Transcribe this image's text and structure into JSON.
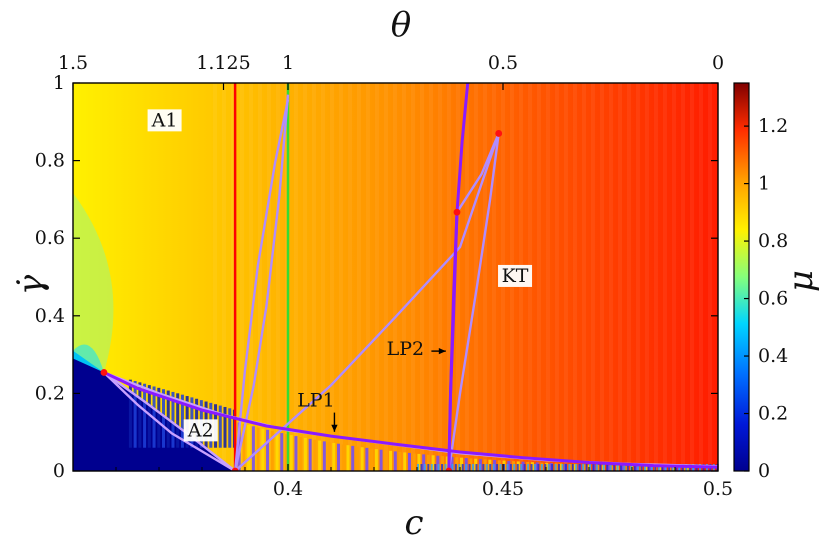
{
  "chart_data": {
    "type": "heatmap",
    "x_axis": {
      "label": "c",
      "range": [
        0.35,
        0.5
      ],
      "ticks": [
        0.4,
        0.45,
        0.5
      ],
      "tick_labels": [
        "0.4",
        "0.45",
        "0.5"
      ]
    },
    "x2_axis": {
      "label": "θ",
      "tick_positions_c": [
        0.35,
        0.385,
        0.4,
        0.45,
        0.5
      ],
      "tick_labels": [
        "1.5",
        "1.125",
        "1",
        "0.5",
        "0"
      ]
    },
    "y_axis": {
      "label": "γ̇",
      "range": [
        0,
        1
      ],
      "ticks": [
        0,
        0.2,
        0.4,
        0.6,
        0.8,
        1
      ],
      "tick_labels": [
        "0",
        "0.2",
        "0.4",
        "0.6",
        "0.8",
        "1"
      ]
    },
    "colorbar": {
      "label": "μ",
      "range": [
        0,
        1.35
      ],
      "ticks": [
        0,
        0.2,
        0.4,
        0.6,
        0.8,
        1,
        1.2
      ],
      "tick_labels": [
        "0",
        "0.2",
        "0.4",
        "0.6",
        "0.8",
        "1",
        "1.2"
      ],
      "colormap": [
        "#00008f",
        "#0050ff",
        "#00ffff",
        "#80ff80",
        "#ffff00",
        "#ff8000",
        "#ff0000",
        "#800000"
      ]
    },
    "region_labels": [
      {
        "text": "A1",
        "c": 0.3713,
        "gamma": 0.896
      },
      {
        "text": "A2",
        "c": 0.3797,
        "gamma": 0.097
      },
      {
        "text": "KT",
        "c": 0.4528,
        "gamma": 0.495
      }
    ],
    "annotations": [
      {
        "text": "LP1",
        "c": 0.4065,
        "gamma": 0.166,
        "arrow_to": [
          0.4108,
          0.101
        ]
      },
      {
        "text": "LP2",
        "c": 0.4273,
        "gamma": 0.299,
        "arrow_to": [
          0.4367,
          0.309
        ]
      }
    ],
    "vertical_lines": [
      {
        "name": "red",
        "c": 0.3877,
        "color": "#ff0000"
      },
      {
        "name": "green",
        "c": 0.4,
        "color": "#33dd33"
      }
    ],
    "purple_curves": [
      {
        "name": "spinodal-lower",
        "color": "#8a1aff",
        "points": [
          [
            0.3572,
            0.254
          ],
          [
            0.365,
            0.213
          ],
          [
            0.38,
            0.157
          ],
          [
            0.395,
            0.116
          ],
          [
            0.41,
            0.09
          ],
          [
            0.425,
            0.069
          ],
          [
            0.44,
            0.049
          ],
          [
            0.455,
            0.034
          ],
          [
            0.47,
            0.022
          ],
          [
            0.485,
            0.014
          ],
          [
            0.5,
            0.01
          ]
        ]
      },
      {
        "name": "spinodal-vertical",
        "color": "#8a1aff",
        "points": [
          [
            0.4374,
            0.0
          ],
          [
            0.4378,
            0.2
          ],
          [
            0.4385,
            0.4
          ],
          [
            0.4393,
            0.667
          ],
          [
            0.4405,
            0.85
          ],
          [
            0.4418,
            1.0
          ]
        ]
      },
      {
        "name": "spinodal-return",
        "color": "#8a1aff",
        "points": [
          [
            0.4374,
            0.0
          ],
          [
            0.4378,
            0.2
          ],
          [
            0.4385,
            0.45
          ],
          [
            0.4393,
            0.667
          ]
        ]
      }
    ],
    "light_curves": [
      {
        "name": "envelope-low",
        "color": "#c8a0ff",
        "points": [
          [
            0.3572,
            0.254
          ],
          [
            0.37,
            0.2
          ],
          [
            0.385,
            0.145
          ],
          [
            0.4,
            0.105
          ],
          [
            0.42,
            0.075
          ],
          [
            0.44,
            0.046
          ],
          [
            0.46,
            0.028
          ],
          [
            0.48,
            0.018
          ],
          [
            0.5,
            0.012
          ]
        ]
      },
      {
        "name": "A2-left",
        "color": "#c8a0ff",
        "points": [
          [
            0.3572,
            0.254
          ],
          [
            0.365,
            0.171
          ],
          [
            0.373,
            0.097
          ],
          [
            0.3877,
            0.0
          ]
        ]
      },
      {
        "name": "A2-left-2",
        "color": "#c8a0ff",
        "points": [
          [
            0.3572,
            0.254
          ],
          [
            0.367,
            0.176
          ],
          [
            0.377,
            0.093
          ],
          [
            0.3877,
            0.0
          ]
        ]
      },
      {
        "name": "tongue-up-1",
        "color": "#b08cff",
        "points": [
          [
            0.3877,
            0.0
          ],
          [
            0.39,
            0.26
          ],
          [
            0.393,
            0.53
          ],
          [
            0.397,
            0.795
          ],
          [
            0.4,
            0.957
          ]
        ]
      },
      {
        "name": "tongue-up-2",
        "color": "#b08cff",
        "points": [
          [
            0.3877,
            0.0
          ],
          [
            0.392,
            0.219
          ],
          [
            0.395,
            0.426
          ],
          [
            0.398,
            0.71
          ],
          [
            0.4,
            0.97
          ]
        ]
      },
      {
        "name": "KT-tongue-1",
        "color": "#b08cff",
        "points": [
          [
            0.3877,
            0.0
          ],
          [
            0.41,
            0.221
          ],
          [
            0.425,
            0.397
          ],
          [
            0.44,
            0.577
          ],
          [
            0.449,
            0.87
          ]
        ]
      },
      {
        "name": "KT-tongue-2",
        "color": "#b08cff",
        "points": [
          [
            0.4393,
            0.667
          ],
          [
            0.445,
            0.765
          ],
          [
            0.449,
            0.87
          ]
        ]
      },
      {
        "name": "KT-tongue-3",
        "color": "#b08cff",
        "points": [
          [
            0.4374,
            0.0
          ],
          [
            0.44,
            0.2
          ],
          [
            0.444,
            0.48
          ],
          [
            0.447,
            0.7
          ],
          [
            0.449,
            0.87
          ]
        ]
      }
    ],
    "points": [
      {
        "c": 0.3572,
        "gamma": 0.254
      },
      {
        "c": 0.3877,
        "gamma": 0.0
      },
      {
        "c": 0.4374,
        "gamma": 0.0
      },
      {
        "c": 0.4393,
        "gamma": 0.667
      },
      {
        "c": 0.449,
        "gamma": 0.87
      }
    ]
  }
}
